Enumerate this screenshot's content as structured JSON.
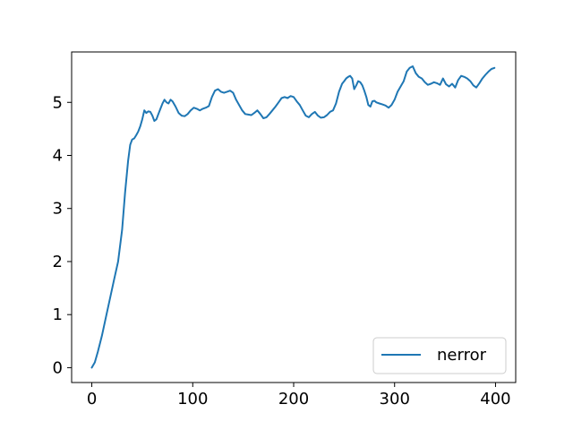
{
  "chart_data": {
    "type": "line",
    "title": "",
    "xlabel": "",
    "ylabel": "",
    "xlim": [
      -20,
      420
    ],
    "ylim": [
      -0.28,
      5.95
    ],
    "xticks": [
      0,
      100,
      200,
      300,
      400
    ],
    "yticks": [
      0,
      1,
      2,
      3,
      4,
      5
    ],
    "grid": false,
    "legend": {
      "position": "lower-right",
      "entries": [
        "nerror"
      ]
    },
    "series": [
      {
        "name": "nerror",
        "color": "#1f77b4",
        "x": [
          0,
          3,
          6,
          10,
          14,
          18,
          22,
          26,
          30,
          33,
          36,
          38,
          40,
          42,
          44,
          46,
          48,
          50,
          52,
          54,
          56,
          58,
          60,
          62,
          64,
          66,
          68,
          70,
          72,
          74,
          76,
          78,
          80,
          83,
          86,
          89,
          92,
          95,
          98,
          101,
          104,
          107,
          110,
          113,
          116,
          119,
          122,
          125,
          128,
          131,
          134,
          137,
          140,
          143,
          146,
          149,
          152,
          155,
          158,
          161,
          164,
          167,
          170,
          173,
          176,
          179,
          182,
          185,
          188,
          191,
          194,
          197,
          200,
          203,
          206,
          209,
          212,
          215,
          218,
          221,
          224,
          227,
          230,
          233,
          236,
          239,
          242,
          245,
          248,
          250,
          252,
          254,
          256,
          258,
          260,
          262,
          264,
          266,
          268,
          270,
          272,
          274,
          276,
          278,
          280,
          282,
          285,
          288,
          291,
          294,
          297,
          300,
          303,
          306,
          309,
          312,
          315,
          318,
          321,
          324,
          327,
          330,
          333,
          336,
          339,
          342,
          345,
          348,
          351,
          354,
          357,
          360,
          363,
          366,
          369,
          372,
          375,
          378,
          381,
          384,
          387,
          390,
          393,
          396,
          399
        ],
        "y": [
          0.0,
          0.1,
          0.3,
          0.6,
          0.95,
          1.3,
          1.65,
          2.0,
          2.6,
          3.3,
          3.9,
          4.2,
          4.3,
          4.32,
          4.38,
          4.45,
          4.55,
          4.68,
          4.85,
          4.8,
          4.83,
          4.82,
          4.75,
          4.65,
          4.68,
          4.78,
          4.88,
          4.98,
          5.05,
          5.0,
          4.98,
          5.05,
          5.02,
          4.92,
          4.8,
          4.75,
          4.74,
          4.78,
          4.85,
          4.9,
          4.88,
          4.85,
          4.88,
          4.9,
          4.93,
          5.1,
          5.22,
          5.25,
          5.2,
          5.18,
          5.2,
          5.22,
          5.18,
          5.05,
          4.95,
          4.85,
          4.78,
          4.77,
          4.76,
          4.8,
          4.85,
          4.78,
          4.7,
          4.72,
          4.78,
          4.85,
          4.92,
          5.0,
          5.08,
          5.1,
          5.08,
          5.12,
          5.1,
          5.02,
          4.95,
          4.85,
          4.75,
          4.72,
          4.78,
          4.82,
          4.75,
          4.71,
          4.72,
          4.76,
          4.82,
          4.85,
          4.98,
          5.2,
          5.35,
          5.4,
          5.45,
          5.48,
          5.5,
          5.45,
          5.25,
          5.32,
          5.4,
          5.38,
          5.32,
          5.22,
          5.1,
          4.95,
          4.92,
          5.02,
          5.03,
          5.0,
          4.98,
          4.96,
          4.94,
          4.9,
          4.95,
          5.05,
          5.2,
          5.3,
          5.4,
          5.58,
          5.65,
          5.68,
          5.55,
          5.48,
          5.45,
          5.38,
          5.33,
          5.35,
          5.38,
          5.36,
          5.33,
          5.45,
          5.34,
          5.3,
          5.35,
          5.28,
          5.42,
          5.5,
          5.48,
          5.45,
          5.4,
          5.32,
          5.28,
          5.36,
          5.45,
          5.52,
          5.58,
          5.63,
          5.65
        ]
      }
    ]
  }
}
